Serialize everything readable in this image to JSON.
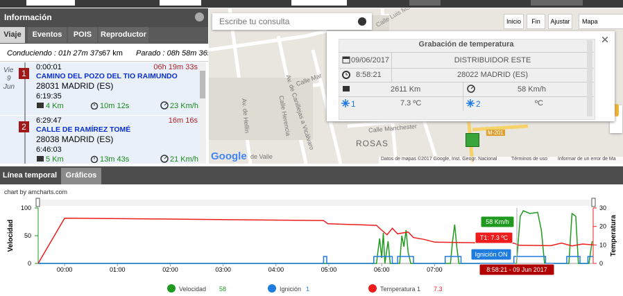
{
  "left_panel": {
    "title": "Información",
    "tabs": [
      "Viaje",
      "Eventos",
      "POIS",
      "Reproductor"
    ],
    "summary": {
      "driving": "Conduciendo : 01h 27m 37s",
      "distance": "67 km",
      "stopped": "Parado : 08h 58m 36s"
    },
    "date": {
      "weekday": "Vie",
      "day": "9",
      "month": "Jun"
    },
    "entries": [
      {
        "marker": "1",
        "start": "0:00:01",
        "stop_duration": "06h 19m 33s",
        "name": "CAMINO DEL POZO DEL TIO RAIMUNDO",
        "address": "28031 MADRID (ES)",
        "end": "6:19:35",
        "distance": "4 Km",
        "duration": "10m 12s",
        "speed": "23 Km/h"
      },
      {
        "marker": "2",
        "start": "6:29:47",
        "stop_duration": "16m 16s",
        "name": "CALLE DE RAMÍREZ TOMÉ",
        "address": "28038 MADRID (ES)",
        "end": "6:46:03",
        "distance": "5 Km",
        "duration": "13m 43s",
        "speed": "21 Km/h"
      }
    ]
  },
  "map": {
    "search_placeholder": "Escribe tu consulta",
    "buttons": [
      "Inicio",
      "Fin",
      "Ajustar"
    ],
    "map_type": "Mapa",
    "labels": [
      "Calle Luis Ma",
      "Av. de Canillejas a Vicálvaro",
      "Calle Herencia",
      "Av. de Hellín",
      "Calle Mar",
      "Calle Manchester",
      "ROSAS",
      "de Valle",
      "M-201"
    ],
    "google": "Google",
    "attribution": "Datos de mapas ©2017 Google, Inst. Geogr. Nacional",
    "terms": "Términos de uso",
    "report": "Informar de un error de Ma",
    "popup": {
      "title": "Grabación de temperatura",
      "date": "09/06/2017",
      "place": "DISTRIBUIDOR ESTE",
      "time": "8:58:21",
      "address": "28022 MADRID (ES)",
      "odometer": "2611 Km",
      "speed": "58 Km/h",
      "sensor1": "1",
      "temp1": "7.3 ºC",
      "sensor2": "2",
      "temp2": "ºC"
    }
  },
  "bottom_tabs": [
    "Línea temporal",
    "Gráficos"
  ],
  "chart_data": {
    "type": "line",
    "credit": "chart by amcharts.com",
    "ylabel": "Velocidad",
    "y2label": "Temperatura",
    "xlim": [
      -0.5,
      10
    ],
    "xticks": [
      {
        "value": 0,
        "label": "00:00"
      },
      {
        "value": 1,
        "label": "01:00"
      },
      {
        "value": 2,
        "label": "02:00"
      },
      {
        "value": 3,
        "label": "03:00"
      },
      {
        "value": 4,
        "label": "04:00"
      },
      {
        "value": 5,
        "label": "05:00"
      },
      {
        "value": 6,
        "label": "06:00"
      },
      {
        "value": 7,
        "label": "07:00"
      }
    ],
    "ylim": [
      0,
      100
    ],
    "yticks": [
      0,
      50,
      100
    ],
    "y2lim": [
      0,
      30
    ],
    "y2ticks": [
      0,
      10,
      20,
      30
    ],
    "y3lim": [
      0,
      8
    ],
    "series": [
      {
        "name": "Velocidad",
        "color": "#1f9a1f",
        "legend_value": 58,
        "x": [
          -0.5,
          5.9,
          5.96,
          6.0,
          6.03,
          6.06,
          6.12,
          6.16,
          6.34,
          6.38,
          6.42,
          6.46,
          6.5,
          6.55,
          7.3,
          7.34,
          7.38,
          7.42,
          7.46,
          8.55,
          8.62,
          8.68,
          8.8,
          8.95,
          9.02,
          9.08,
          9.54,
          9.6,
          9.67,
          9.72,
          9.92,
          9.98
        ],
        "values": [
          0,
          0,
          45,
          10,
          55,
          0,
          40,
          0,
          0,
          50,
          30,
          60,
          20,
          0,
          0,
          40,
          70,
          30,
          0,
          0,
          85,
          95,
          90,
          92,
          60,
          0,
          0,
          90,
          85,
          0,
          0,
          40
        ]
      },
      {
        "name": "Ignición",
        "color": "#1e7be0",
        "legend_value": 1,
        "axis": "y3",
        "x": [
          -0.5,
          4.9,
          4.9,
          4.96,
          4.96,
          5.85,
          5.85,
          6.2,
          6.2,
          6.3,
          6.3,
          6.6,
          6.6,
          7.2,
          7.2,
          7.5,
          7.5,
          8.5,
          8.5,
          9.1,
          9.1,
          9.5,
          9.5,
          9.75,
          9.75,
          9.9,
          9.9,
          10
        ],
        "values": [
          0,
          0,
          1,
          1,
          0,
          0,
          1,
          1,
          0,
          0,
          1,
          1,
          0,
          0,
          1,
          1,
          0,
          0,
          1,
          1,
          0,
          0,
          1,
          1,
          0,
          0,
          1,
          1
        ]
      },
      {
        "name": "Temperatura 1",
        "color": "#ee1c1c",
        "legend_value": 7.3,
        "axis": "y2",
        "x": [
          -0.5,
          0,
          4.9,
          4.98,
          5.9,
          6.0,
          6.1,
          6.2,
          6.3,
          6.5,
          6.6,
          6.8,
          7.0,
          7.5,
          8.5,
          8.6,
          9.2,
          9.4,
          9.6,
          9.8,
          10
        ],
        "values": [
          0,
          24.5,
          23.2,
          21.5,
          20.6,
          18,
          15.5,
          19,
          16,
          17,
          14,
          13,
          11.5,
          11.3,
          11,
          9.8,
          9.6,
          11,
          9.5,
          10.5,
          10
        ]
      }
    ],
    "tooltips": {
      "speed": "58 Km/h",
      "temp": "T1: 7.3 ºC",
      "ignition": "Ignición ON",
      "time": "8:58:21 - 09 Jun 2017"
    }
  }
}
